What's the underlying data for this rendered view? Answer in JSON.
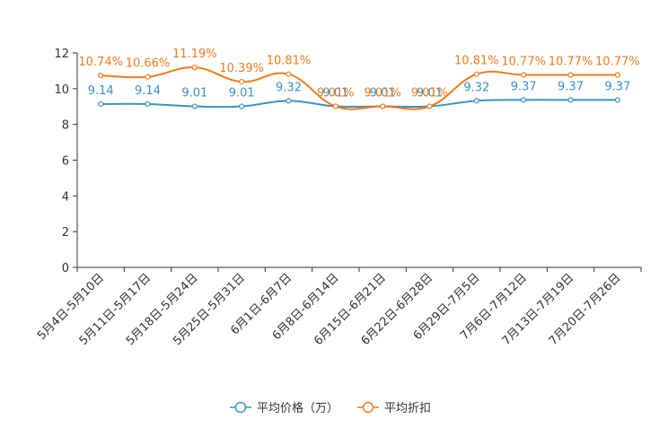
{
  "chart_data": {
    "type": "line",
    "title": "",
    "xlabel": "",
    "ylabel": "",
    "ylim": [
      0,
      12
    ],
    "yticks": [
      "0",
      "2",
      "4",
      "6",
      "8",
      "10",
      "12"
    ],
    "categories": [
      "5月4日-5月10日",
      "5月11日-5月17日",
      "5月18日-5月24日",
      "5月25日-5月31日",
      "6月1日-6月7日",
      "6月8日-6月14日",
      "6月15日-6月21日",
      "6月22日-6月28日",
      "6月29日-7月5日",
      "7月6日-7月12日",
      "7月13日-7月19日",
      "7月20日-7月26日"
    ],
    "series": [
      {
        "name": "平均价格（万）",
        "color": "#3a93c3",
        "values": [
          9.14,
          9.14,
          9.01,
          9.01,
          9.32,
          9.01,
          9.01,
          9.01,
          9.32,
          9.37,
          9.37,
          9.37
        ],
        "labels": [
          "9.14",
          "9.14",
          "9.01",
          "9.01",
          "9.32",
          "9.01",
          "9.01",
          "9.01",
          "9.32",
          "9.37",
          "9.37",
          "9.37"
        ]
      },
      {
        "name": "平均折扣",
        "color": "#f07b1d",
        "values": [
          10.74,
          10.66,
          11.19,
          10.39,
          10.81,
          9.01,
          9.01,
          9.01,
          10.81,
          10.77,
          10.77,
          10.77
        ],
        "labels": [
          "10.74%",
          "10.66%",
          "11.19%",
          "10.39%",
          "10.81%",
          "9.01%",
          "9.01%",
          "9.01%",
          "10.81%",
          "10.77%",
          "10.77%",
          "10.77%"
        ]
      }
    ],
    "legend_position": "bottom-center",
    "grid": false
  }
}
